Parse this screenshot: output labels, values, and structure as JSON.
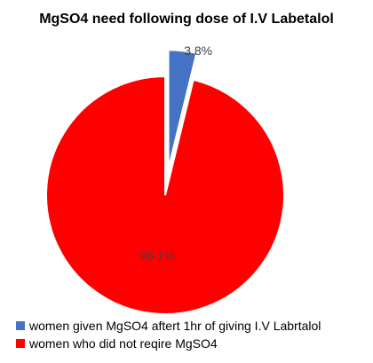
{
  "chart_data": {
    "type": "pie",
    "title": "MgSO4 need following dose of I.V Labetalol",
    "categories": [
      "women given MgSO4 aftert 1hr of giving I.V Labrtalol",
      "women who did not reqire MgSO4"
    ],
    "values": [
      3.8,
      96.1
    ],
    "data_labels": [
      "3.8%",
      "96.1%"
    ],
    "colors": [
      "#4472c4",
      "#ff0000"
    ],
    "exploded_slice": "women given MgSO4 aftert 1hr of giving I.V Labrtalol",
    "legend_position": "bottom"
  }
}
